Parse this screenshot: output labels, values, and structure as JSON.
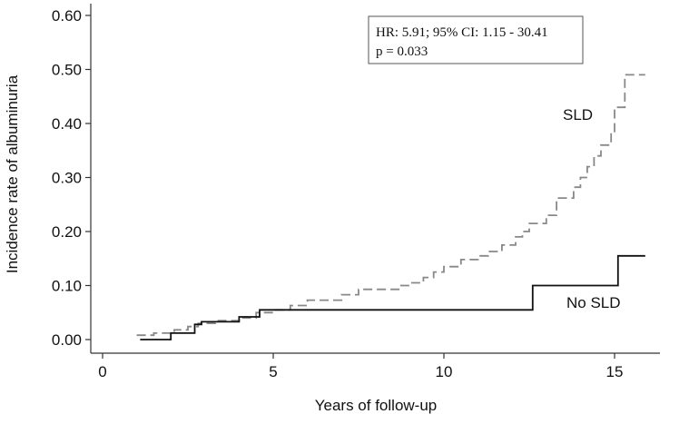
{
  "chart_data": {
    "type": "line",
    "title": "",
    "xlabel": "Years of follow-up",
    "ylabel": "Incidence rate of albuminuria",
    "xlim": [
      0,
      16.3
    ],
    "ylim": [
      -0.01,
      0.615
    ],
    "xticks": [
      0,
      5,
      10,
      15
    ],
    "yticks": [
      0.0,
      0.1,
      0.2,
      0.3,
      0.4,
      0.5,
      0.6
    ],
    "xtick_labels": [
      "0",
      "5",
      "10",
      "15"
    ],
    "ytick_labels": [
      "0.00",
      "0.10",
      "0.20",
      "0.30",
      "0.40",
      "0.50",
      "0.60"
    ],
    "grid": false,
    "legend": "none",
    "annotation": {
      "line1": "HR: 5.91; 95% CI: 1.15 - 30.41",
      "line2": "p = 0.033"
    },
    "series": [
      {
        "name": "SLD",
        "style": "dashed",
        "color": "#888888",
        "step": true,
        "x": [
          1.0,
          1.5,
          2.1,
          2.5,
          2.8,
          3.3,
          4.0,
          4.5,
          5.0,
          5.5,
          6.0,
          7.0,
          7.5,
          8.7,
          9.0,
          9.4,
          9.7,
          10.0,
          10.5,
          11.0,
          11.3,
          11.7,
          12.1,
          12.3,
          12.5,
          13.0,
          13.3,
          13.8,
          14.0,
          14.2,
          14.4,
          14.6,
          14.9,
          15.0,
          15.3,
          15.9
        ],
        "y": [
          0.008,
          0.012,
          0.018,
          0.024,
          0.03,
          0.035,
          0.04,
          0.05,
          0.055,
          0.063,
          0.073,
          0.083,
          0.093,
          0.1,
          0.105,
          0.115,
          0.125,
          0.135,
          0.148,
          0.155,
          0.163,
          0.175,
          0.19,
          0.2,
          0.215,
          0.23,
          0.262,
          0.282,
          0.3,
          0.32,
          0.34,
          0.36,
          0.385,
          0.43,
          0.49,
          0.49
        ]
      },
      {
        "name": "No SLD",
        "style": "solid",
        "color": "#111111",
        "step": true,
        "x": [
          1.1,
          1.5,
          2.0,
          2.7,
          2.9,
          4.0,
          4.6,
          12.6,
          15.1,
          15.9
        ],
        "y": [
          0.0,
          0.0,
          0.012,
          0.028,
          0.033,
          0.042,
          0.055,
          0.1,
          0.155,
          0.155
        ]
      }
    ],
    "series_labels": {
      "sld": "SLD",
      "no_sld": "No SLD"
    }
  }
}
